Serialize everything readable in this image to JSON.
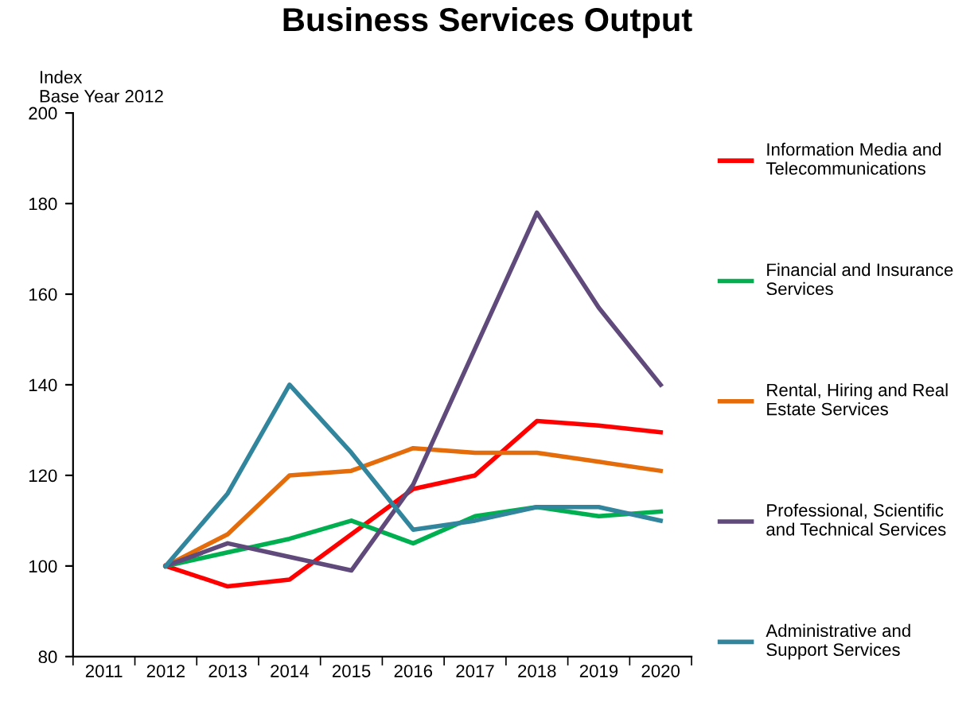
{
  "chart_data": {
    "type": "line",
    "title": "Business Services Output",
    "ylabel": "Index\nBase Year 2012",
    "categories": [
      "2011",
      "2012",
      "2013",
      "2014",
      "2015",
      "2016",
      "2017",
      "2018",
      "2019",
      "2020"
    ],
    "series": [
      {
        "name": "Information Media and\nTelecommunications",
        "color": "#ff0000",
        "values": [
          null,
          100,
          95.5,
          97,
          107,
          117,
          120,
          132,
          131,
          129.5
        ]
      },
      {
        "name": "Financial and Insurance\nServices",
        "color": "#00b050",
        "values": [
          null,
          100,
          103,
          106,
          110,
          105,
          111,
          113,
          111,
          112
        ]
      },
      {
        "name": "Rental, Hiring and Real\nEstate Services",
        "color": "#e46c0a",
        "values": [
          null,
          100,
          107,
          120,
          121,
          126,
          125,
          125,
          123,
          121
        ]
      },
      {
        "name": "Professional, Scientific\nand Technical Services",
        "color": "#604a7b",
        "values": [
          null,
          100,
          105,
          102,
          99,
          118,
          148,
          178,
          157,
          140
        ]
      },
      {
        "name": "Administrative and\nSupport Services",
        "color": "#31859c",
        "values": [
          null,
          100,
          116,
          140,
          125,
          108,
          110,
          113,
          113,
          110
        ]
      }
    ],
    "ylim": [
      80,
      200
    ],
    "yticks": [
      80,
      100,
      120,
      140,
      160,
      180,
      200
    ],
    "grid": false,
    "legend": "right",
    "marker": "none",
    "line_style": "solid"
  }
}
